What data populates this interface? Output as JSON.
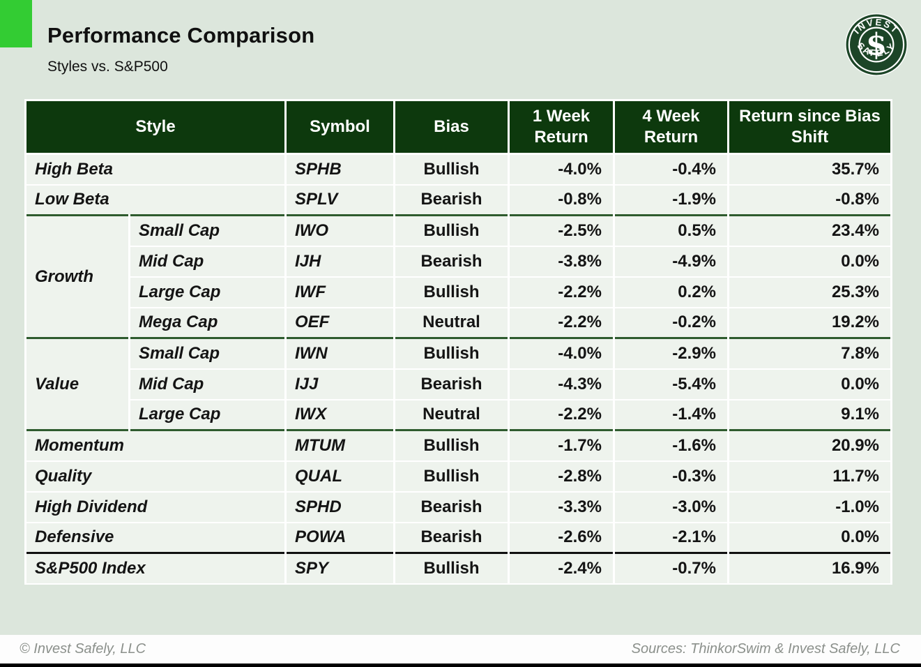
{
  "page": {
    "title": "Performance Comparison",
    "subtitle": "Styles vs. S&P500"
  },
  "logo": {
    "arc_top": "INVEST",
    "arc_bottom": "SAFELY",
    "monogram": "$"
  },
  "chart_data": {
    "type": "table",
    "title": "Performance Comparison",
    "subtitle": "Styles vs. S&P500",
    "columns": [
      "Style",
      "Symbol",
      "Bias",
      "1 Week Return",
      "4 Week Return",
      "Return since Bias Shift"
    ],
    "rows": [
      {
        "style": "High Beta",
        "symbol": "SPHB",
        "bias": "Bullish",
        "week1": "-4.0%",
        "week4": "-0.4%",
        "since_shift": "35.7%"
      },
      {
        "style": "Low Beta",
        "symbol": "SPLV",
        "bias": "Bearish",
        "week1": "-0.8%",
        "week4": "-1.9%",
        "since_shift": "-0.8%"
      },
      {
        "group": "Growth",
        "group_span": 4,
        "substyle": "Small Cap",
        "symbol": "IWO",
        "bias": "Bullish",
        "week1": "-2.5%",
        "week4": "0.5%",
        "since_shift": "23.4%",
        "separator": "green"
      },
      {
        "substyle": "Mid Cap",
        "symbol": "IJH",
        "bias": "Bearish",
        "week1": "-3.8%",
        "week4": "-4.9%",
        "since_shift": "0.0%"
      },
      {
        "substyle": "Large Cap",
        "symbol": "IWF",
        "bias": "Bullish",
        "week1": "-2.2%",
        "week4": "0.2%",
        "since_shift": "25.3%"
      },
      {
        "substyle": "Mega Cap",
        "symbol": "OEF",
        "bias": "Neutral",
        "week1": "-2.2%",
        "week4": "-0.2%",
        "since_shift": "19.2%"
      },
      {
        "group": "Value",
        "group_span": 3,
        "substyle": "Small Cap",
        "symbol": "IWN",
        "bias": "Bullish",
        "week1": "-4.0%",
        "week4": "-2.9%",
        "since_shift": "7.8%",
        "separator": "green"
      },
      {
        "substyle": "Mid Cap",
        "symbol": "IJJ",
        "bias": "Bearish",
        "week1": "-4.3%",
        "week4": "-5.4%",
        "since_shift": "0.0%"
      },
      {
        "substyle": "Large Cap",
        "symbol": "IWX",
        "bias": "Neutral",
        "week1": "-2.2%",
        "week4": "-1.4%",
        "since_shift": "9.1%"
      },
      {
        "style": "Momentum",
        "symbol": "MTUM",
        "bias": "Bullish",
        "week1": "-1.7%",
        "week4": "-1.6%",
        "since_shift": "20.9%",
        "separator": "green"
      },
      {
        "style": "Quality",
        "symbol": "QUAL",
        "bias": "Bullish",
        "week1": "-2.8%",
        "week4": "-0.3%",
        "since_shift": "11.7%"
      },
      {
        "style": "High Dividend",
        "symbol": "SPHD",
        "bias": "Bearish",
        "week1": "-3.3%",
        "week4": "-3.0%",
        "since_shift": "-1.0%"
      },
      {
        "style": "Defensive",
        "symbol": "POWA",
        "bias": "Bearish",
        "week1": "-2.6%",
        "week4": "-2.1%",
        "since_shift": "0.0%"
      },
      {
        "style": "S&P500 Index",
        "symbol": "SPY",
        "bias": "Bullish",
        "week1": "-2.4%",
        "week4": "-0.7%",
        "since_shift": "16.9%",
        "separator": "black"
      }
    ],
    "legend": "off",
    "grid": "white gridlines on light green cells"
  },
  "footer": {
    "left": "© Invest Safely, LLC",
    "right": "Sources: ThinkorSwim & Invest Safely, LLC"
  },
  "theme": {
    "page_bg": "#dce6dc",
    "accent_square": "#33cc33",
    "header_bg": "#0d390d",
    "cell_bg": "#eef3ed",
    "bullish_green": "#107e10",
    "bearish_red": "#f90d0b",
    "neutral_gray": "#a6a6a6",
    "section_divider_green": "#2e5b2e",
    "bottom_bar_black": "#000000",
    "logo_green": "#1c4527",
    "footer_gray": "#8b908b"
  }
}
